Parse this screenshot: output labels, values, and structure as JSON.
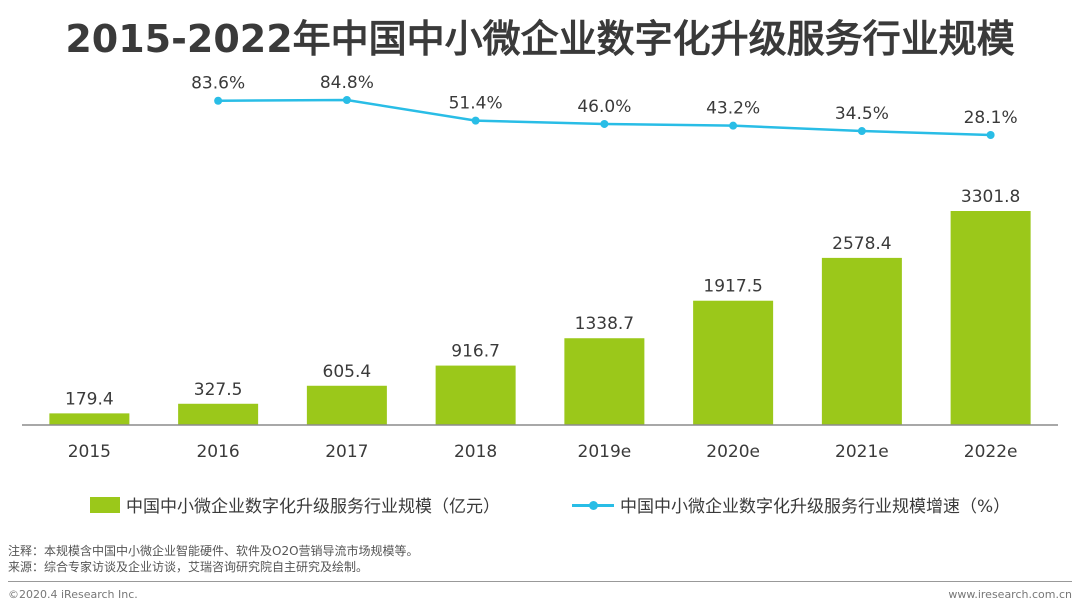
{
  "title": "2015-2022年中国中小微企业数字化升级服务行业规模",
  "colors": {
    "bar": "#9bc81a",
    "line": "#29bde6",
    "text": "#3a3a3a"
  },
  "chart_data": {
    "type": "bar+line",
    "categories": [
      "2015",
      "2016",
      "2017",
      "2018",
      "2019e",
      "2020e",
      "2021e",
      "2022e"
    ],
    "series": [
      {
        "name": "中国中小微企业数字化升级服务行业规模（亿元）",
        "type": "bar",
        "values": [
          179.4,
          327.5,
          605.4,
          916.7,
          1338.7,
          1917.5,
          2578.4,
          3301.8
        ],
        "labels": [
          "179.4",
          "327.5",
          "605.4",
          "916.7",
          "1338.7",
          "1917.5",
          "2578.4",
          "3301.8"
        ]
      },
      {
        "name": "中国中小微企业数字化升级服务行业规模增速（%）",
        "type": "line",
        "values": [
          null,
          83.6,
          84.8,
          51.4,
          46.0,
          43.2,
          34.5,
          28.1
        ],
        "labels": [
          "",
          "83.6%",
          "84.8%",
          "51.4%",
          "46.0%",
          "43.2%",
          "34.5%",
          "28.1%"
        ]
      }
    ],
    "xlabel": "",
    "ylabel": ""
  },
  "legend": {
    "bar_label": "中国中小微企业数字化升级服务行业规模（亿元）",
    "line_label": "中国中小微企业数字化升级服务行业规模增速（%）"
  },
  "notes": {
    "line1": "注释：本规模含中国中小微企业智能硬件、软件及O2O营销导流市场规模等。",
    "line2": "来源：综合专家访谈及企业访谈，艾瑞咨询研究院自主研究及绘制。"
  },
  "footer": {
    "left": "©2020.4 iResearch Inc.",
    "right": "www.iresearch.com.cn"
  }
}
